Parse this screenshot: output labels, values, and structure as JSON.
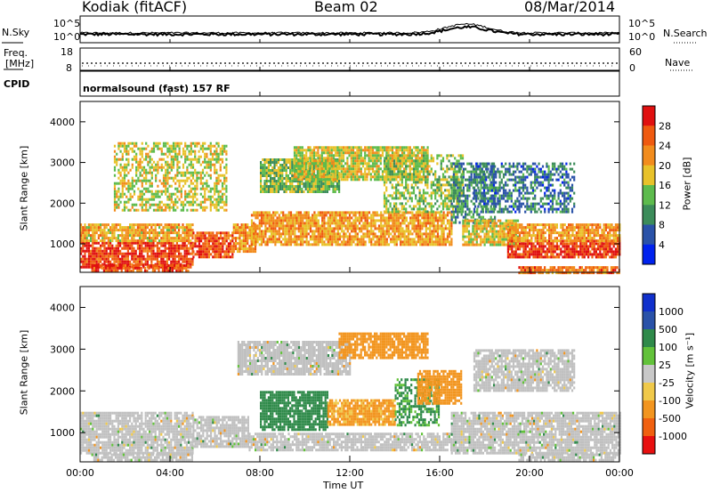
{
  "header": {
    "station": "Kodiak (fitACF)",
    "beam": "Beam 02",
    "date": "08/Mar/2014"
  },
  "time_series_panel": {
    "left_label": "N.Sky",
    "right_label": "N.Search",
    "left_ticks": [
      "10^5",
      "10^0"
    ],
    "right_ticks": [
      "10^5",
      "10^0"
    ]
  },
  "freq_panel": {
    "left_label_1": "Freq.",
    "left_label_2": "[MHz]",
    "right_label": "Nave",
    "left_ticks": [
      "18",
      "8"
    ],
    "right_ticks": [
      "60",
      "0"
    ]
  },
  "cpid_panel": {
    "label": "CPID",
    "text": "normalsound (fast) 157 RF"
  },
  "colors": {
    "power_scale": [
      "#0022ee",
      "#2a52a8",
      "#3c8c5a",
      "#5dbb4d",
      "#e8c22a",
      "#f28c1d",
      "#ef5a10",
      "#e01010"
    ],
    "velocity_scale": [
      "#e81010",
      "#f06010",
      "#f2951f",
      "#f0c94a",
      "#c8c8c8",
      "#62c23a",
      "#2f8a4a",
      "#2a52a8",
      "#1030cc"
    ],
    "ground_scatter": "#c0c0c0"
  },
  "chart_data": [
    {
      "type": "heatmap",
      "name": "power",
      "ylabel": "Slant Range [km]",
      "yticks": [
        "4000",
        "3000",
        "2000",
        "1000"
      ],
      "ylim": [
        300,
        4500
      ],
      "xlim": [
        0,
        24
      ],
      "colorbar_label": "Power [dB]",
      "colorbar_ticks": [
        "28",
        "24",
        "20",
        "16",
        "12",
        "8",
        "4"
      ],
      "colorbar_range": [
        0,
        32
      ],
      "regions": [
        {
          "t0": 0.0,
          "t1": 5.0,
          "r0": 450,
          "r1": 1050,
          "v": 28
        },
        {
          "t0": 0.0,
          "t1": 5.0,
          "r0": 1050,
          "r1": 1500,
          "v": 20
        },
        {
          "t0": 0.5,
          "t1": 4.8,
          "r0": 350,
          "r1": 500,
          "v": 26
        },
        {
          "t0": 5.0,
          "t1": 6.8,
          "r0": 700,
          "r1": 1300,
          "v": 26
        },
        {
          "t0": 6.8,
          "t1": 7.8,
          "r0": 800,
          "r1": 1500,
          "v": 22
        },
        {
          "t0": 7.6,
          "t1": 16.5,
          "r0": 1000,
          "r1": 1800,
          "v": 21
        },
        {
          "t0": 8.0,
          "t1": 11.5,
          "r0": 2300,
          "r1": 3100,
          "v": 14
        },
        {
          "t0": 9.5,
          "t1": 15.5,
          "r0": 2600,
          "r1": 3400,
          "v": 17
        },
        {
          "t0": 13.5,
          "t1": 17.0,
          "r0": 1800,
          "r1": 3200,
          "v": 15
        },
        {
          "t0": 16.5,
          "t1": 18.5,
          "r0": 1500,
          "r1": 3000,
          "v": 10
        },
        {
          "t0": 17.0,
          "t1": 19.5,
          "r0": 1000,
          "r1": 1600,
          "v": 18
        },
        {
          "t0": 19.0,
          "t1": 24.0,
          "r0": 650,
          "r1": 1100,
          "v": 28
        },
        {
          "t0": 19.0,
          "t1": 24.0,
          "r0": 1100,
          "r1": 1500,
          "v": 21
        },
        {
          "t0": 19.5,
          "t1": 24.0,
          "r0": 300,
          "r1": 450,
          "v": 24
        },
        {
          "t0": 1.5,
          "t1": 6.5,
          "r0": 1800,
          "r1": 3500,
          "v": 17
        },
        {
          "t0": 17.5,
          "t1": 22.0,
          "r0": 1800,
          "r1": 3000,
          "v": 8
        }
      ]
    },
    {
      "type": "heatmap",
      "name": "velocity",
      "ylabel": "Slant Range [km]",
      "yticks": [
        "4000",
        "3000",
        "2000",
        "1000"
      ],
      "ylim": [
        300,
        4500
      ],
      "xlim": [
        0,
        24
      ],
      "xlabel": "Time UT",
      "xticks": [
        "00:00",
        "04:00",
        "08:00",
        "12:00",
        "16:00",
        "20:00",
        "00:00"
      ],
      "colorbar_label": "Velocity [m s⁻¹]",
      "colorbar_ticks": [
        "1000",
        "500",
        "100",
        "25",
        "-25",
        "-100",
        "-500",
        "-1000"
      ],
      "regions": [
        {
          "t0": 0.0,
          "t1": 5.0,
          "r0": 500,
          "r1": 1500,
          "v": 0
        },
        {
          "t0": 0.5,
          "t1": 5.0,
          "r0": 350,
          "r1": 500,
          "v": 0
        },
        {
          "t0": 5.0,
          "t1": 7.5,
          "r0": 650,
          "r1": 1400,
          "v": 0
        },
        {
          "t0": 7.5,
          "t1": 16.5,
          "r0": 600,
          "r1": 1000,
          "v": 0
        },
        {
          "t0": 7.0,
          "t1": 12.0,
          "r0": 2400,
          "r1": 3200,
          "v": 0
        },
        {
          "t0": 11.5,
          "t1": 15.5,
          "r0": 2800,
          "r1": 3400,
          "v": -200
        },
        {
          "t0": 8.0,
          "t1": 11.0,
          "r0": 1100,
          "r1": 2000,
          "v": 300
        },
        {
          "t0": 11.0,
          "t1": 14.0,
          "r0": 1200,
          "r1": 1800,
          "v": -150
        },
        {
          "t0": 14.0,
          "t1": 16.0,
          "r0": 1200,
          "r1": 2300,
          "v": 120
        },
        {
          "t0": 16.5,
          "t1": 24.0,
          "r0": 500,
          "r1": 1500,
          "v": 0
        },
        {
          "t0": 19.5,
          "t1": 24.0,
          "r0": 350,
          "r1": 500,
          "v": 0
        },
        {
          "t0": 15.0,
          "t1": 17.0,
          "r0": 1700,
          "r1": 2500,
          "v": -300
        },
        {
          "t0": 17.5,
          "t1": 22.0,
          "r0": 2000,
          "r1": 3000,
          "v": 0
        }
      ]
    }
  ]
}
